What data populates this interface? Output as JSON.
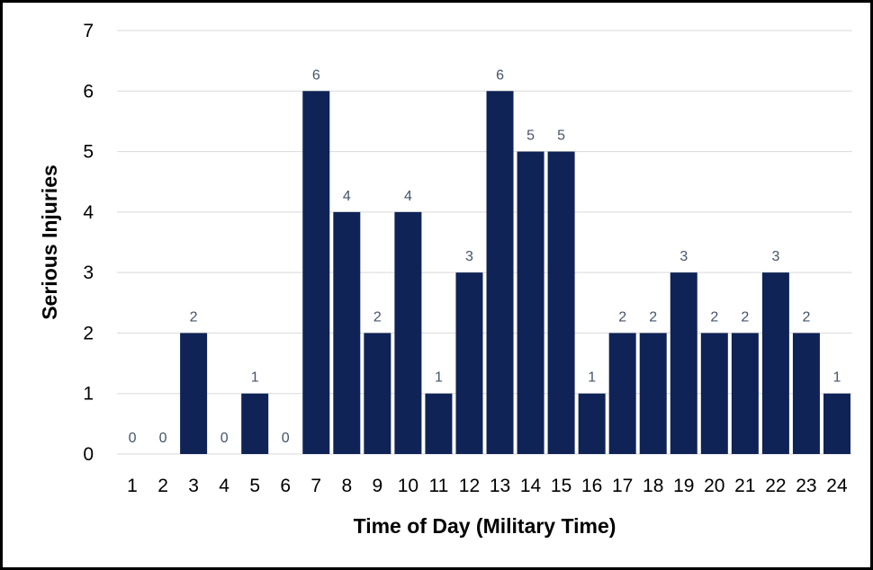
{
  "chart_data": {
    "type": "bar",
    "title": "",
    "xlabel": "Time of Day (Military Time)",
    "ylabel": "Serious Injuries",
    "categories": [
      "1",
      "2",
      "3",
      "4",
      "5",
      "6",
      "7",
      "8",
      "9",
      "10",
      "11",
      "12",
      "13",
      "14",
      "15",
      "16",
      "17",
      "18",
      "19",
      "20",
      "21",
      "22",
      "23",
      "24"
    ],
    "values": [
      0,
      0,
      2,
      0,
      1,
      0,
      6,
      4,
      2,
      4,
      1,
      3,
      6,
      5,
      5,
      1,
      2,
      2,
      3,
      2,
      2,
      3,
      2,
      1
    ],
    "ylim": [
      0,
      7
    ],
    "yticks": [
      0,
      1,
      2,
      3,
      4,
      5,
      6,
      7
    ],
    "grid": true,
    "legend": "none",
    "bar_color": "#0f2356",
    "grid_color": "#d9d9d9",
    "label_color": "#44546a"
  }
}
